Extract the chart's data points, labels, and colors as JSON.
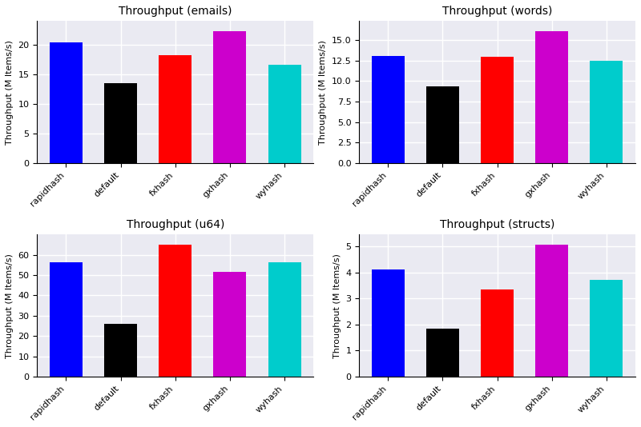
{
  "subplots": [
    {
      "title": "Throughput (emails)",
      "categories": [
        "rapidhash",
        "default",
        "fxhash",
        "gxhash",
        "wyhash"
      ],
      "values": [
        20.45,
        13.6,
        18.35,
        22.3,
        16.65
      ],
      "colors": [
        "#0000ff",
        "#000000",
        "#ff0000",
        "#cc00cc",
        "#00cccc"
      ],
      "ylabel": "Throughput (M Items/s)"
    },
    {
      "title": "Throughput (words)",
      "categories": [
        "rapidhash",
        "default",
        "fxhash",
        "gxhash",
        "wyhash"
      ],
      "values": [
        13.1,
        9.35,
        13.0,
        16.05,
        12.5
      ],
      "colors": [
        "#0000ff",
        "#000000",
        "#ff0000",
        "#cc00cc",
        "#00cccc"
      ],
      "ylabel": "Throughput (M Items/s)"
    },
    {
      "title": "Throughput (u64)",
      "categories": [
        "rapidhash",
        "default",
        "fxhash",
        "gxhash",
        "wyhash"
      ],
      "values": [
        56.5,
        26.0,
        64.8,
        51.5,
        56.2
      ],
      "colors": [
        "#0000ff",
        "#000000",
        "#ff0000",
        "#cc00cc",
        "#00cccc"
      ],
      "ylabel": "Throughput (M Items/s)"
    },
    {
      "title": "Throughput (structs)",
      "categories": [
        "rapidhash",
        "default",
        "fxhash",
        "gxhash",
        "wyhash"
      ],
      "values": [
        4.1,
        1.85,
        3.35,
        5.05,
        3.7
      ],
      "colors": [
        "#0000ff",
        "#000000",
        "#ff0000",
        "#cc00cc",
        "#00cccc"
      ],
      "ylabel": "Throughput (M Items/s)"
    }
  ],
  "ax_background_color": "#eaeaf2",
  "figure_background": "#ffffff",
  "grid_color": "#ffffff",
  "grid_linewidth": 1.0,
  "bar_width": 0.6,
  "title_fontsize": 10,
  "label_fontsize": 8,
  "tick_fontsize": 8
}
